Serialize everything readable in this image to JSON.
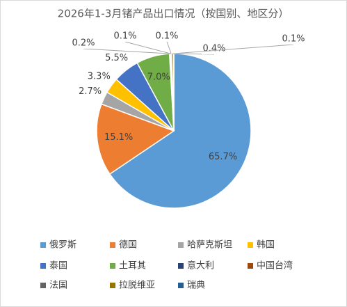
{
  "chart_data": {
    "type": "pie",
    "title": "2026年1-3月锗产品出口情况（按国别、地区分）",
    "categories": [
      "俄罗斯",
      "德国",
      "哈萨克斯坦",
      "韩国",
      "泰国",
      "土耳其",
      "意大利",
      "中国台湾",
      "法国",
      "拉脱维亚",
      "瑞典"
    ],
    "values": [
      65.7,
      15.1,
      2.7,
      3.3,
      5.5,
      7.0,
      0.2,
      0.1,
      0.1,
      0.4,
      0.1
    ],
    "value_labels": [
      "65.7%",
      "15.1%",
      "2.7%",
      "3.3%",
      "5.5%",
      "7.0%",
      "0.2%",
      "0.1%",
      "0.1%",
      "0.4%",
      "0.1%"
    ],
    "colors": [
      "#5b9bd5",
      "#ed7d31",
      "#a5a5a5",
      "#ffc000",
      "#4472c4",
      "#70ad47",
      "#264478",
      "#9e480e",
      "#636363",
      "#997300",
      "#255e91"
    ],
    "legend": "bottom"
  }
}
